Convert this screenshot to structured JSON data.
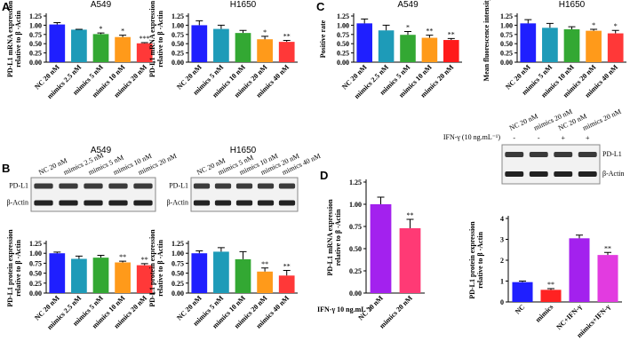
{
  "panel_labels": [
    "A",
    "B",
    "C",
    "D"
  ],
  "chart_data": [
    {
      "type": "bar",
      "title": "A549",
      "ylabel": [
        "PD-L1 mRNA expression",
        "relative to β -Actin"
      ],
      "categories": [
        "NC 20 nM",
        "mimics 2.5 nM",
        "mimics 5 nM",
        "mimics 10 nM",
        "mimics 20 nM"
      ],
      "values": [
        1.02,
        0.88,
        0.76,
        0.68,
        0.51
      ],
      "errors": [
        0.05,
        0.01,
        0.03,
        0.05,
        0.02
      ],
      "significance": [
        null,
        null,
        "*",
        "*",
        "***"
      ],
      "colors": [
        "#1f1fff",
        "#1e9bb8",
        "#33a833",
        "#ff9a1a",
        "#ff3838"
      ],
      "ylim": [
        0,
        1.25
      ],
      "yticks": [
        {
          "value": 0,
          "label": "0.00"
        },
        {
          "value": 0.25,
          "label": "0.25"
        },
        {
          "value": 0.5,
          "label": "0.50"
        },
        {
          "value": 0.75,
          "label": "0.75"
        },
        {
          "value": 1,
          "label": "1.00"
        },
        {
          "value": 1.25,
          "label": "1.25"
        }
      ]
    },
    {
      "type": "bar",
      "title": "H1650",
      "ylabel": [
        "PD-L1 mRNA expression",
        "relative to β -Actin"
      ],
      "categories": [
        "NC 20 nM",
        "mimics 5 nM",
        "mimics 10 nM",
        "mimics 20 nM",
        "mimics 40 nM"
      ],
      "values": [
        1.0,
        0.9,
        0.79,
        0.62,
        0.55
      ],
      "errors": [
        0.12,
        0.1,
        0.07,
        0.08,
        0.04
      ],
      "significance": [
        null,
        null,
        null,
        "*",
        "**"
      ],
      "colors": [
        "#1f1fff",
        "#1e9bb8",
        "#33a833",
        "#ff9a1a",
        "#ff3838"
      ],
      "ylim": [
        0,
        1.25
      ],
      "yticks": [
        {
          "value": 0,
          "label": "0.00"
        },
        {
          "value": 0.25,
          "label": "0.25"
        },
        {
          "value": 0.5,
          "label": "0.50"
        },
        {
          "value": 0.75,
          "label": "0.75"
        },
        {
          "value": 1,
          "label": "1.00"
        },
        {
          "value": 1.25,
          "label": "1.25"
        }
      ]
    },
    {
      "type": "bar",
      "title": "A549",
      "ylabel": [
        "Positive rate"
      ],
      "categories": [
        "NC 20 nM",
        "mimics 2.5 nM",
        "mimics 5 nM",
        "mimics 10 nM",
        "mimics 20 nM"
      ],
      "values": [
        1.05,
        0.86,
        0.74,
        0.66,
        0.6
      ],
      "errors": [
        0.12,
        0.14,
        0.09,
        0.07,
        0.04
      ],
      "significance": [
        null,
        null,
        "*",
        "**",
        "**"
      ],
      "colors": [
        "#1f1fff",
        "#1e9bb8",
        "#33a833",
        "#ff9a1a",
        "#ff1a1a"
      ],
      "ylim": [
        0,
        1.25
      ],
      "yticks": [
        {
          "value": 0,
          "label": "0.00"
        },
        {
          "value": 0.25,
          "label": "0.25"
        },
        {
          "value": 0.5,
          "label": "0.50"
        },
        {
          "value": 0.75,
          "label": "0.75"
        },
        {
          "value": 1,
          "label": "1.00"
        },
        {
          "value": 1.25,
          "label": "1.25"
        }
      ]
    },
    {
      "type": "bar",
      "title": "H1650",
      "ylabel": [
        "Mean fluorescence intensity"
      ],
      "categories": [
        "NC 20 nM",
        "mimics 5 nM",
        "mimics 10 nM",
        "mimics 20 nM",
        "mimics 40 nM"
      ],
      "values": [
        1.05,
        0.93,
        0.89,
        0.85,
        0.78
      ],
      "errors": [
        0.1,
        0.12,
        0.07,
        0.04,
        0.08
      ],
      "significance": [
        null,
        null,
        null,
        "*",
        "*"
      ],
      "colors": [
        "#1f1fff",
        "#1e9bb8",
        "#33a833",
        "#ff9a1a",
        "#ff3838"
      ],
      "ylim": [
        0,
        1.25
      ],
      "yticks": [
        {
          "value": 0,
          "label": "0.00"
        },
        {
          "value": 0.25,
          "label": "0.25"
        },
        {
          "value": 0.5,
          "label": "0.50"
        },
        {
          "value": 0.75,
          "label": "0.75"
        },
        {
          "value": 1,
          "label": "1.00"
        },
        {
          "value": 1.25,
          "label": "1.25"
        }
      ]
    },
    {
      "type": "bar",
      "title": "A549",
      "ylabel": [
        "PD-L1 protein expression",
        "relative to β -Actin"
      ],
      "blot": {
        "lanes": [
          "NC 20 nM",
          "mimics 2.5 nM",
          "mimics 5 nM",
          "mimics 10 nM",
          "mimics 20 nM"
        ],
        "rows": [
          "PD-L1",
          "β-Actin"
        ]
      },
      "categories": [
        "NC 20 nM",
        "mimics 2.5 nM",
        "mimics 5 nM",
        "mimics 10 nM",
        "mimics 20 nM"
      ],
      "values": [
        1.0,
        0.86,
        0.89,
        0.77,
        0.7
      ],
      "errors": [
        0.03,
        0.07,
        0.06,
        0.03,
        0.04
      ],
      "significance": [
        null,
        null,
        null,
        "**",
        "**"
      ],
      "colors": [
        "#1f1fff",
        "#1e9bb8",
        "#33a833",
        "#ff9a1a",
        "#ff3838"
      ],
      "ylim": [
        0,
        1.25
      ],
      "yticks": [
        {
          "value": 0,
          "label": "0.00"
        },
        {
          "value": 0.25,
          "label": "0.25"
        },
        {
          "value": 0.5,
          "label": "0.50"
        },
        {
          "value": 0.75,
          "label": "0.75"
        },
        {
          "value": 1,
          "label": "1.00"
        },
        {
          "value": 1.25,
          "label": "1.25"
        }
      ]
    },
    {
      "type": "bar",
      "title": "H1650",
      "ylabel": [
        "PD-L1 protein expression",
        "relative to β -Actin"
      ],
      "blot": {
        "lanes": [
          "NC 20 nM",
          "mimics 5 nM",
          "mimics 10 nM",
          "mimics 20 nM",
          "mimics 40 nM"
        ],
        "rows": [
          "PD-L1",
          "β-Actin"
        ]
      },
      "categories": [
        "NC 20 nM",
        "mimics 5 nM",
        "mimics 10 nM",
        "mimics 20 nM",
        "mimics 40 nM"
      ],
      "values": [
        1.0,
        1.04,
        0.85,
        0.54,
        0.44
      ],
      "errors": [
        0.06,
        0.1,
        0.19,
        0.09,
        0.13
      ],
      "significance": [
        null,
        null,
        null,
        "**",
        "**"
      ],
      "colors": [
        "#1f1fff",
        "#1e9bb8",
        "#33a833",
        "#ff9a1a",
        "#ff3838"
      ],
      "ylim": [
        0,
        1.25
      ],
      "yticks": [
        {
          "value": 0,
          "label": "0.00"
        },
        {
          "value": 0.25,
          "label": "0.25"
        },
        {
          "value": 0.5,
          "label": "0.50"
        },
        {
          "value": 0.75,
          "label": "0.75"
        },
        {
          "value": 1,
          "label": "1.00"
        },
        {
          "value": 1.25,
          "label": "1.25"
        }
      ]
    },
    {
      "type": "bar",
      "ylabel": [
        "PD-L1 mRNA expression",
        "relative to β -Actin"
      ],
      "treatment": "IFN-γ  10 ng.mL⁻¹",
      "categories": [
        "NC 20 nM",
        "mimics 20 nM"
      ],
      "values": [
        1.0,
        0.73
      ],
      "errors": [
        0.08,
        0.1
      ],
      "significance": [
        null,
        "**"
      ],
      "colors": [
        "#a321ee",
        "#ff3a75"
      ],
      "ylim": [
        0,
        1.25
      ],
      "yticks": [
        {
          "value": 0,
          "label": "0.00"
        },
        {
          "value": 0.25,
          "label": "0.25"
        },
        {
          "value": 0.5,
          "label": "0.50"
        },
        {
          "value": 0.75,
          "label": "0.75"
        },
        {
          "value": 1,
          "label": "1.00"
        },
        {
          "value": 1.25,
          "label": "1.25"
        }
      ]
    },
    {
      "type": "bar",
      "ylabel": [
        "PD-L1 protein expression",
        "relative to β -Actin"
      ],
      "blot": {
        "lanes": [
          "NC 20 nM",
          "mimics 20 nM",
          "NC 20 nM",
          "mimics 20 nM"
        ],
        "rows": [
          "PD-L1",
          "β-Actin"
        ],
        "treatment": "IFN-γ (10 ng.mL⁻¹)",
        "signs": [
          "-",
          "-",
          "+",
          "+"
        ]
      },
      "categories": [
        "NC",
        "mimics",
        "NC+IFN-γ",
        "mimics+IFN-γ"
      ],
      "values": [
        0.95,
        0.58,
        3.05,
        2.25
      ],
      "errors": [
        0.05,
        0.06,
        0.15,
        0.12
      ],
      "significance": [
        null,
        "**",
        null,
        "**"
      ],
      "colors": [
        "#1f1fff",
        "#ff2222",
        "#a321ee",
        "#e23be0"
      ],
      "ylim": [
        0,
        4
      ],
      "yticks": [
        0,
        1,
        2,
        3,
        4
      ]
    }
  ]
}
